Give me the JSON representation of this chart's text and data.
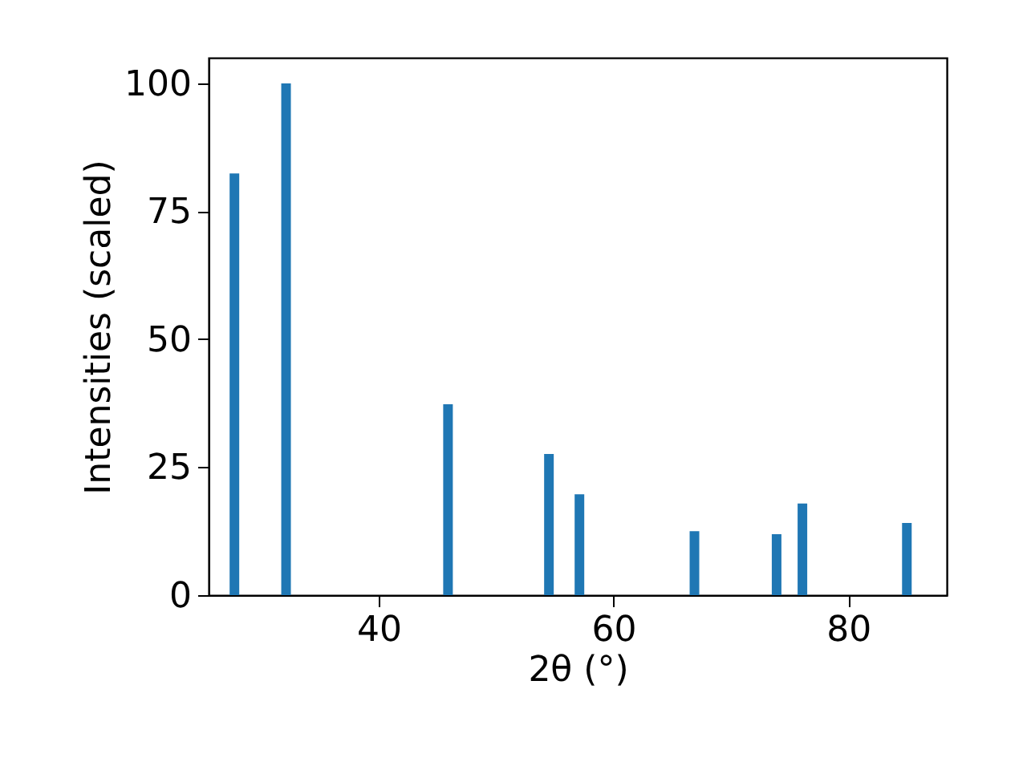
{
  "chart_data": {
    "type": "bar",
    "xlabel": "2θ (°)",
    "ylabel": "Intensities (scaled)",
    "x": [
      27.7,
      32.1,
      45.9,
      54.5,
      57.1,
      66.9,
      73.9,
      76.1,
      85.0
    ],
    "values": [
      82.4,
      100,
      37.3,
      27.6,
      19.7,
      12.5,
      11.9,
      17.9,
      14.1
    ],
    "color": "#1f77b4",
    "xlim": [
      25.5,
      88.4
    ],
    "xticks": [
      40,
      60,
      80
    ],
    "ylim": [
      0,
      105
    ],
    "yticks": [
      0,
      25,
      50,
      75,
      100
    ],
    "grid": false
  }
}
